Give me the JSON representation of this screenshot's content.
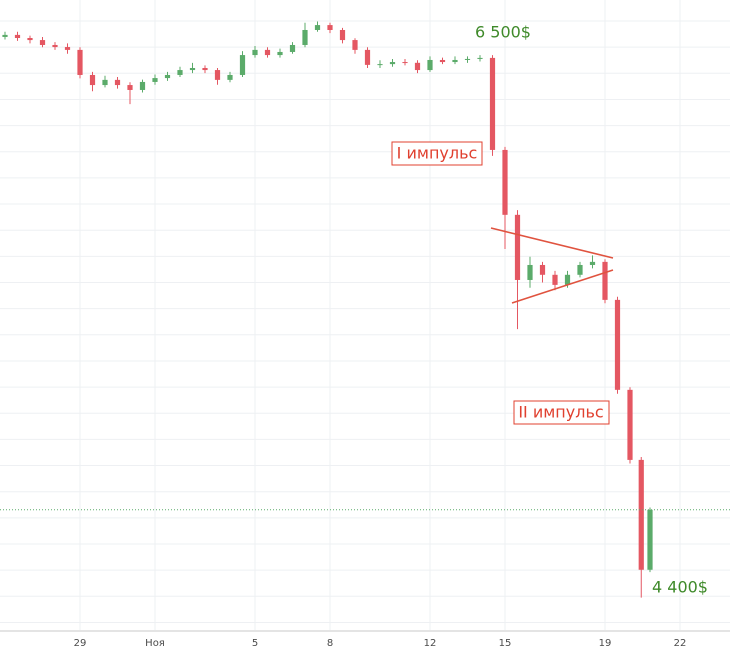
{
  "chart_data": {
    "type": "candlestick",
    "x": [
      -6,
      -5.5,
      -5,
      -4.5,
      -4,
      -3.5,
      -3,
      -2.5,
      -2,
      -1.5,
      -1,
      -0.5,
      0,
      0.5,
      1,
      1.5,
      2,
      2.5,
      3,
      3.5,
      4,
      4.5,
      5,
      5.5,
      6,
      6.5,
      7,
      7.5,
      8,
      8.5,
      9,
      9.5,
      10,
      10.5,
      11,
      11.5,
      12,
      12.5,
      13,
      13.5,
      14,
      14.5,
      15,
      15.5,
      16,
      16.5,
      17,
      17.5,
      18,
      18.5,
      19,
      19.45,
      19.8
    ],
    "open": [
      6570,
      6578,
      6566,
      6558,
      6539,
      6531,
      6520,
      6423,
      6384,
      6404,
      6384,
      6365,
      6396,
      6411,
      6423,
      6442,
      6450,
      6442,
      6404,
      6423,
      6500,
      6520,
      6500,
      6512,
      6539,
      6597,
      6616,
      6597,
      6558,
      6520,
      6462,
      6465,
      6473,
      6470,
      6442,
      6481,
      6473,
      6481,
      6485,
      6489,
      6133,
      5882,
      5630,
      5688,
      5650,
      5611,
      5650,
      5688,
      5700,
      5553,
      5205,
      4934,
      4509
    ],
    "high": [
      6590,
      6590,
      6575,
      6570,
      6550,
      6545,
      6530,
      6435,
      6420,
      6415,
      6395,
      6405,
      6425,
      6435,
      6455,
      6470,
      6460,
      6450,
      6435,
      6515,
      6535,
      6530,
      6525,
      6550,
      6625,
      6630,
      6625,
      6605,
      6565,
      6530,
      6480,
      6485,
      6485,
      6480,
      6495,
      6490,
      6495,
      6495,
      6500,
      6500,
      6145,
      5900,
      5720,
      5700,
      5665,
      5665,
      5700,
      5725,
      5710,
      5565,
      5215,
      4945,
      4750
    ],
    "low": [
      6560,
      6555,
      6545,
      6530,
      6520,
      6505,
      6410,
      6360,
      6375,
      6370,
      6310,
      6355,
      6385,
      6400,
      6415,
      6430,
      6430,
      6385,
      6395,
      6415,
      6490,
      6490,
      6490,
      6505,
      6530,
      6590,
      6585,
      6545,
      6505,
      6450,
      6450,
      6455,
      6460,
      6430,
      6435,
      6465,
      6465,
      6470,
      6475,
      6110,
      5750,
      5440,
      5600,
      5620,
      5590,
      5600,
      5640,
      5675,
      5540,
      5190,
      4920,
      4401,
      4500
    ],
    "close": [
      6578,
      6566,
      6558,
      6539,
      6531,
      6520,
      6423,
      6384,
      6404,
      6384,
      6365,
      6396,
      6411,
      6423,
      6442,
      6450,
      6442,
      6404,
      6423,
      6500,
      6520,
      6500,
      6512,
      6539,
      6597,
      6616,
      6597,
      6558,
      6520,
      6462,
      6465,
      6473,
      6470,
      6442,
      6481,
      6473,
      6481,
      6485,
      6489,
      6133,
      5882,
      5630,
      5688,
      5650,
      5611,
      5650,
      5688,
      5700,
      5553,
      5205,
      4934,
      4509,
      4741
    ],
    "up_color": "#5bab6a",
    "down_color": "#e45762",
    "xlim": [
      -6.2,
      23
    ],
    "ylim": [
      4276,
      6713
    ],
    "xticks": [
      {
        "value": -3,
        "label": "29"
      },
      {
        "value": 0,
        "label": "Ноя"
      },
      {
        "value": 4,
        "label": "5"
      },
      {
        "value": 7,
        "label": "8"
      },
      {
        "value": 11,
        "label": "12"
      },
      {
        "value": 14,
        "label": "15"
      },
      {
        "value": 18,
        "label": "19"
      },
      {
        "value": 21,
        "label": "22"
      }
    ],
    "grid": true,
    "annotations": [
      "6 500$",
      "I импульс",
      "II импульс",
      "4 400$"
    ]
  }
}
